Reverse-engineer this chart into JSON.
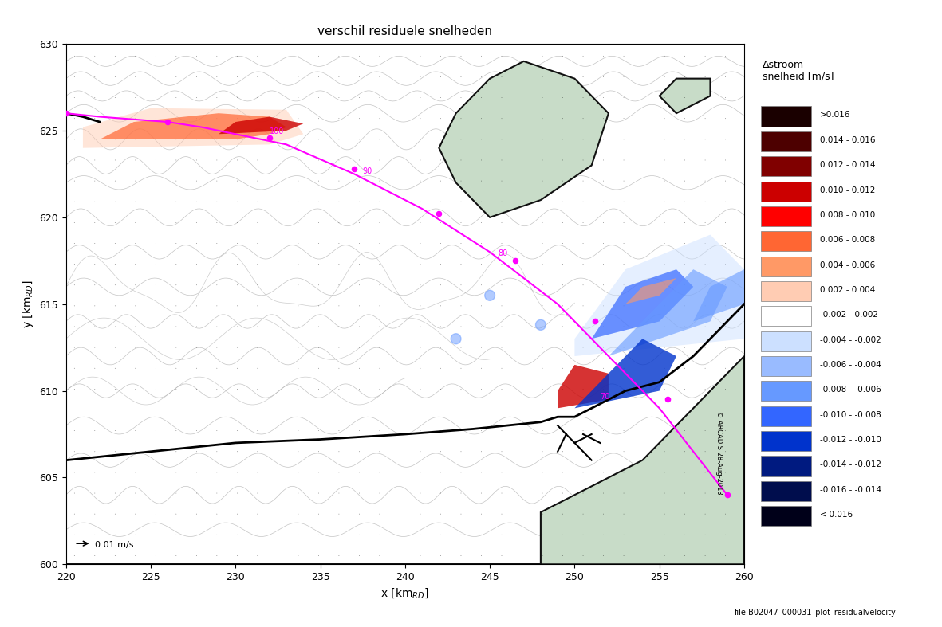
{
  "title": "verschil residuele snelheden",
  "xlabel": "x [kmₛD]",
  "ylabel": "y [kmₛD]",
  "xlim": [
    220,
    260
  ],
  "ylim": [
    600,
    630
  ],
  "xticks": [
    220,
    225,
    230,
    235,
    240,
    245,
    250,
    255,
    260
  ],
  "yticks": [
    600,
    605,
    610,
    615,
    620,
    625,
    630
  ],
  "legend_title": "Δstroom-\nsnelheid [m/s]",
  "legend_labels": [
    ">0.016",
    "0.014 - 0.016",
    "0.012 - 0.014",
    "0.010 - 0.012",
    "0.008 - 0.010",
    "0.006 - 0.008",
    "0.004 - 0.006",
    "0.002 - 0.004",
    "-0.002 - 0.002",
    "-0.004 - -0.002",
    "-0.006 - -0.004",
    "-0.008 - -0.006",
    "-0.010 - -0.008",
    "-0.012 - -0.010",
    "-0.014 - -0.012",
    "-0.016 - -0.014",
    "<-0.016"
  ],
  "legend_colors": [
    "#1a0000",
    "#4d0000",
    "#800000",
    "#cc0000",
    "#ff0000",
    "#ff6633",
    "#ff9966",
    "#ffccb3",
    "#ffffff",
    "#cce0ff",
    "#99bbff",
    "#6699ff",
    "#3366ff",
    "#0033cc",
    "#001a80",
    "#000d4d",
    "#000019"
  ],
  "colorbar_colors_pos": [
    "#1a0000",
    "#4d0000",
    "#800000",
    "#cc0000",
    "#ff0000",
    "#ff6633",
    "#ff9966",
    "#ffccb3"
  ],
  "colorbar_colors_neg": [
    "#cce0ff",
    "#99bbff",
    "#6699ff",
    "#3366ff",
    "#0033cc",
    "#001a80",
    "#000d4d",
    "#000019"
  ],
  "scale_arrow_text": "→ 0.01 m/s",
  "copyright_text": "© ARCADIS 28-Aug-2013",
  "file_text": "file:B02047_000031_plot_residualvelocity",
  "bg_water_color": "#e8f0e8",
  "bg_land_color": "#c8dcc8",
  "arrow_color": "#222222",
  "contour_color": "#aaaaaa",
  "coast_color": "#111111",
  "magenta_line_color": "#ff00ff",
  "magenta_dot_color": "#ff00ff"
}
